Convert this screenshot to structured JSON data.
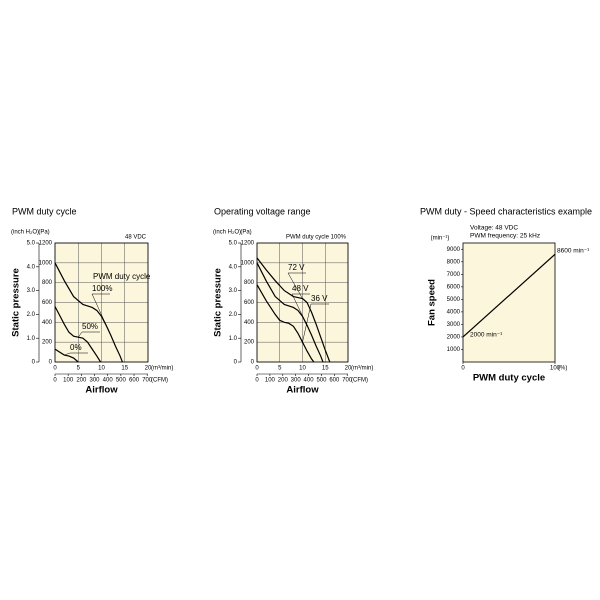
{
  "chart_data": [
    {
      "type": "line",
      "title": "PWM duty cycle",
      "subtitle": "48 VDC",
      "legend_title": "PWM duty cycle",
      "x_label": "Airflow",
      "y_label": "Static pressure",
      "x_unit": "(m³/min)",
      "x2_unit": "(CFM)",
      "y_unit": "(Pa)",
      "y2_unit": "(inch H₂O)",
      "xlim": [
        0,
        20
      ],
      "xticks": [
        0,
        5,
        10,
        15,
        20
      ],
      "x2lim": [
        0,
        706
      ],
      "x2ticks": [
        0,
        100,
        200,
        300,
        400,
        500,
        600,
        700
      ],
      "ylim": [
        0,
        1200
      ],
      "yticks": [
        0,
        200,
        400,
        600,
        800,
        1000,
        1200
      ],
      "y2lim": [
        0,
        5
      ],
      "y2ticks": [
        0,
        {
          "value": 1,
          "label": "1.0"
        },
        {
          "value": 2,
          "label": "2.0"
        },
        {
          "value": 3,
          "label": "3.0"
        },
        {
          "value": 4,
          "label": "4.0"
        },
        {
          "value": 5,
          "label": "5.0"
        }
      ],
      "grid": true,
      "series": [
        {
          "name": "100%",
          "color": "#000000",
          "x": [
            0,
            2,
            4,
            6,
            7,
            8,
            9,
            10,
            11,
            12,
            13,
            14,
            14.5
          ],
          "values": [
            1000,
            820,
            660,
            580,
            565,
            550,
            520,
            460,
            370,
            270,
            160,
            60,
            0
          ]
        },
        {
          "name": "50%",
          "color": "#000000",
          "x": [
            0,
            1,
            2,
            3,
            4,
            5,
            6,
            7,
            8,
            9,
            9.8
          ],
          "values": [
            560,
            470,
            380,
            300,
            260,
            250,
            240,
            200,
            130,
            60,
            0
          ]
        },
        {
          "name": "0%",
          "color": "#000000",
          "x": [
            0,
            1,
            2,
            3,
            4,
            5
          ],
          "values": [
            130,
            100,
            70,
            60,
            40,
            0
          ]
        }
      ]
    },
    {
      "type": "line",
      "title": "Operating voltage range",
      "subtitle": "PWM duty cycle 100%",
      "x_label": "Airflow",
      "y_label": "Static pressure",
      "x_unit": "(m³/min)",
      "x2_unit": "(CFM)",
      "y_unit": "(Pa)",
      "y2_unit": "(inch H₂O)",
      "xlim": [
        0,
        20
      ],
      "xticks": [
        0,
        5,
        10,
        15,
        20
      ],
      "x2lim": [
        0,
        706
      ],
      "x2ticks": [
        0,
        100,
        200,
        300,
        400,
        500,
        600,
        700
      ],
      "ylim": [
        0,
        1200
      ],
      "yticks": [
        0,
        200,
        400,
        600,
        800,
        1000,
        1200
      ],
      "y2lim": [
        0,
        5
      ],
      "y2ticks": [
        0,
        {
          "value": 1,
          "label": "1.0"
        },
        {
          "value": 2,
          "label": "2.0"
        },
        {
          "value": 3,
          "label": "3.0"
        },
        {
          "value": 4,
          "label": "4.0"
        },
        {
          "value": 5,
          "label": "5.0"
        }
      ],
      "grid": true,
      "series": [
        {
          "name": "72 V",
          "color": "#000000",
          "x": [
            0,
            2,
            4,
            6,
            8,
            9,
            10,
            11,
            12,
            13,
            14,
            15,
            16
          ],
          "values": [
            1050,
            930,
            820,
            720,
            660,
            650,
            640,
            600,
            500,
            380,
            250,
            120,
            0
          ]
        },
        {
          "name": "48 V",
          "color": "#000000",
          "x": [
            0,
            2,
            4,
            6,
            7,
            8,
            9,
            10,
            11,
            12,
            13,
            14,
            14.5
          ],
          "values": [
            1000,
            820,
            660,
            580,
            565,
            550,
            520,
            460,
            370,
            270,
            160,
            60,
            0
          ]
        },
        {
          "name": "36 V",
          "color": "#000000",
          "x": [
            0,
            2,
            4,
            5,
            6,
            7,
            8,
            9,
            10,
            11,
            12,
            12.5
          ],
          "values": [
            780,
            620,
            480,
            420,
            400,
            390,
            360,
            290,
            200,
            110,
            30,
            0
          ]
        }
      ]
    },
    {
      "type": "line",
      "title": "PWM duty - Speed characteristics example",
      "notes": [
        "Voltage: 48 VDC",
        "PWM frequency: 25 kHz"
      ],
      "x_label": "PWM duty cycle",
      "y_label": "Fan speed",
      "x_unit": "(%)",
      "y_unit": "(min⁻¹)",
      "xlim": [
        0,
        100
      ],
      "xticks": [
        0,
        100
      ],
      "ylim": [
        0,
        9500
      ],
      "yticks": [
        1000,
        2000,
        3000,
        4000,
        5000,
        6000,
        7000,
        8000,
        9000
      ],
      "grid": false,
      "series": [
        {
          "color": "#000000",
          "x": [
            0,
            100
          ],
          "values": [
            2000,
            8600
          ],
          "value_labels": [
            "2000 min⁻¹",
            "8600 min⁻¹"
          ]
        }
      ]
    }
  ]
}
